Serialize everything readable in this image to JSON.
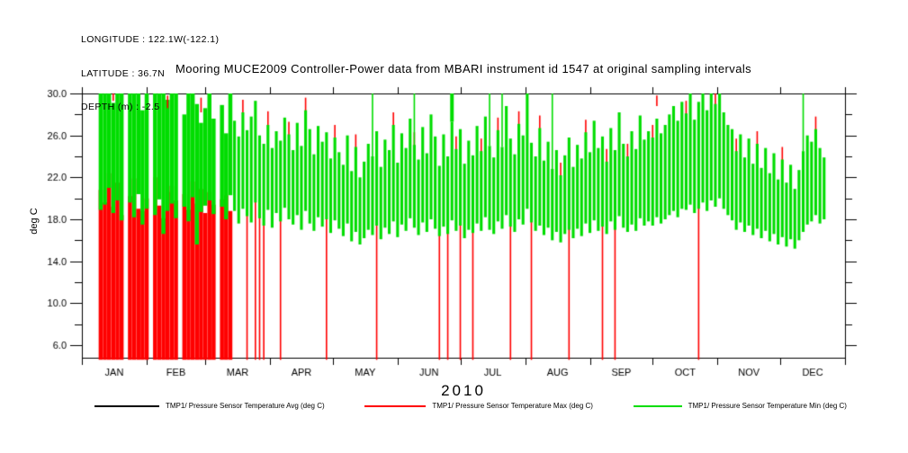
{
  "header": {
    "longitude": "LONGITUDE : 122.1W(-122.1)",
    "latitude": "LATITUDE : 36.7N",
    "depth": "DEPTH (m) : -2.5"
  },
  "title": "Mooring MUCE2009 Controller-Power data from MBARI instrument id 1547 at original sampling intervals",
  "legend": {
    "items": [
      {
        "label": "TMP1/ Pressure Sensor Temperature Avg (deg C)",
        "color": "#000000"
      },
      {
        "label": "TMP1/ Pressure Sensor Temperature Max (deg C)",
        "color": "#ff0000"
      },
      {
        "label": "TMP1/ Pressure Sensor Temperature Min (deg C)",
        "color": "#00dd00"
      }
    ]
  },
  "chart_data": {
    "type": "line",
    "title": "Mooring MUCE2009 Controller-Power data from MBARI instrument id 1547 at original sampling intervals",
    "xlabel": "2010",
    "ylabel": "deg C",
    "year": "2010",
    "ylim": [
      4.8,
      30.0
    ],
    "clip_top": 30.0,
    "grid": false,
    "legend_position": "bottom",
    "yticks_major": [
      6,
      10,
      14,
      18,
      22,
      26,
      30
    ],
    "ytick_labels": [
      "6.0",
      "10.0",
      "14.0",
      "18.0",
      "22.0",
      "26.0",
      "30.0"
    ],
    "yticks_minor": [
      8,
      12,
      16,
      20,
      24,
      28
    ],
    "months": [
      "JAN",
      "FEB",
      "MAR",
      "APR",
      "MAY",
      "JUN",
      "JUL",
      "AUG",
      "SEP",
      "OCT",
      "NOV",
      "DEC"
    ],
    "month_days": [
      31,
      28,
      31,
      30,
      31,
      30,
      31,
      31,
      30,
      31,
      30,
      31
    ],
    "series": [
      {
        "name": "TMP1/ Pressure Sensor Temperature Avg (deg C)",
        "color": "#000000",
        "visible_in_plot": false
      },
      {
        "name": "TMP1/ Pressure Sensor Temperature Max (deg C)",
        "color": "#ff0000"
      },
      {
        "name": "TMP1/ Pressure Sensor Temperature Min (deg C)",
        "color": "#00dd00"
      }
    ],
    "columns_format": [
      "day_of_year",
      "min_band_lo_degC",
      "min_band_hi_degC",
      "max_seg_lo_degC",
      "max_seg_hi_degC"
    ],
    "columns": [
      [
        9,
        18.9,
        30,
        4.6,
        20.8
      ],
      [
        11,
        19.4,
        30,
        4.6,
        19.6
      ],
      [
        13,
        21.0,
        30,
        4.6,
        22.4
      ],
      [
        15,
        18.6,
        29.1,
        4.6,
        19.2
      ],
      [
        17,
        19.8,
        30,
        4.6,
        21.5
      ],
      [
        19,
        17.9,
        30,
        4.6,
        18.4
      ],
      [
        21,
        null,
        null,
        null,
        null
      ],
      [
        23,
        19.6,
        30,
        4.6,
        20.2
      ],
      [
        25,
        18.2,
        30,
        4.6,
        21.9
      ],
      [
        27,
        20.4,
        30,
        4.6,
        19.0
      ],
      [
        29,
        17.5,
        28.4,
        4.6,
        18.8
      ],
      [
        31,
        19.0,
        30,
        4.6,
        20.0
      ],
      [
        33,
        null,
        null,
        null,
        null
      ],
      [
        35,
        18.4,
        30,
        4.6,
        22.0
      ],
      [
        37,
        19.9,
        30,
        4.6,
        19.3
      ],
      [
        39,
        16.6,
        30,
        4.6,
        18.1
      ],
      [
        41,
        18.8,
        29.4,
        4.6,
        20.6
      ],
      [
        43,
        19.5,
        30,
        4.6,
        21.2
      ],
      [
        45,
        18.1,
        30,
        4.6,
        19.8
      ],
      [
        47,
        null,
        null,
        null,
        null
      ],
      [
        49,
        19.2,
        28.0,
        4.6,
        20.4
      ],
      [
        51,
        17.8,
        30,
        4.6,
        18.9
      ],
      [
        53,
        20.1,
        30,
        4.6,
        21.6
      ],
      [
        55,
        15.6,
        29.0,
        4.6,
        19.5
      ],
      [
        57,
        18.7,
        27.2,
        4.6,
        20.9
      ],
      [
        59,
        19.3,
        28.6,
        4.6,
        18.6
      ],
      [
        61,
        19.8,
        30,
        4.6,
        20.6
      ],
      [
        63,
        18.5,
        27.6,
        4.6,
        19.4
      ],
      [
        65,
        null,
        null,
        null,
        null
      ],
      [
        67,
        19.2,
        28.9,
        4.6,
        19.9
      ],
      [
        69,
        18.0,
        26.2,
        4.6,
        20.3
      ],
      [
        71,
        20.3,
        30,
        4.6,
        18.8
      ],
      [
        73,
        18.8,
        27.4,
        null,
        null
      ],
      [
        75,
        17.6,
        25.9,
        null,
        null
      ],
      [
        77,
        19.0,
        28.2,
        27.2,
        29.4
      ],
      [
        79,
        18.3,
        26.5,
        4.6,
        19.1
      ],
      [
        81,
        17.7,
        27.8,
        null,
        null
      ],
      [
        83,
        19.6,
        29.3,
        4.6,
        20.4
      ],
      [
        85,
        18.1,
        26.0,
        4.6,
        18.9
      ],
      [
        87,
        17.4,
        25.2,
        4.6,
        18.2
      ],
      [
        89,
        18.9,
        27.0,
        26.1,
        28.3
      ],
      [
        91,
        17.2,
        24.8,
        null,
        null
      ],
      [
        93,
        18.6,
        26.4,
        null,
        null
      ],
      [
        95,
        17.8,
        25.5,
        4.6,
        18.6
      ],
      [
        97,
        19.1,
        27.7,
        null,
        null
      ],
      [
        99,
        18.0,
        26.1,
        25.2,
        27.3
      ],
      [
        101,
        17.5,
        24.6,
        null,
        null
      ],
      [
        103,
        18.4,
        27.2,
        null,
        null
      ],
      [
        105,
        17.0,
        25.0,
        null,
        null
      ],
      [
        107,
        18.8,
        28.4,
        27.5,
        29.6
      ],
      [
        109,
        17.6,
        26.6,
        null,
        null
      ],
      [
        111,
        16.9,
        24.2,
        null,
        null
      ],
      [
        113,
        18.2,
        26.9,
        null,
        null
      ],
      [
        115,
        17.3,
        25.4,
        null,
        null
      ],
      [
        117,
        18.0,
        26.3,
        4.6,
        18.8
      ],
      [
        119,
        16.7,
        23.8,
        null,
        null
      ],
      [
        121,
        17.9,
        25.8,
        24.9,
        27.0
      ],
      [
        123,
        17.1,
        24.4,
        null,
        null
      ],
      [
        125,
        16.4,
        23.2,
        null,
        null
      ],
      [
        127,
        17.6,
        26.0,
        null,
        null
      ],
      [
        129,
        15.9,
        22.6,
        null,
        null
      ],
      [
        131,
        16.8,
        24.9,
        24.0,
        26.1
      ],
      [
        133,
        15.6,
        22.0,
        null,
        null
      ],
      [
        135,
        16.2,
        23.5,
        null,
        null
      ],
      [
        137,
        17.0,
        25.2,
        null,
        null
      ],
      [
        139,
        16.5,
        24.0,
        null,
        null
      ],
      [
        141,
        17.4,
        26.4,
        4.6,
        18.2
      ],
      [
        143,
        16.1,
        23.0,
        null,
        null
      ],
      [
        145,
        17.2,
        25.6,
        null,
        null
      ],
      [
        147,
        16.6,
        24.6,
        null,
        null
      ],
      [
        149,
        17.8,
        27.0,
        26.1,
        28.2
      ],
      [
        151,
        16.3,
        23.4,
        null,
        null
      ],
      [
        153,
        17.5,
        26.2,
        null,
        null
      ],
      [
        155,
        16.9,
        24.8,
        null,
        null
      ],
      [
        157,
        18.1,
        27.6,
        null,
        null
      ],
      [
        159,
        17.2,
        25.1,
        24.2,
        26.3
      ],
      [
        161,
        16.5,
        23.7,
        null,
        null
      ],
      [
        163,
        17.7,
        26.8,
        null,
        null
      ],
      [
        165,
        16.8,
        24.3,
        null,
        null
      ],
      [
        167,
        18.0,
        28.0,
        null,
        null
      ],
      [
        169,
        17.1,
        25.9,
        null,
        null
      ],
      [
        171,
        16.4,
        23.1,
        4.6,
        17.2
      ],
      [
        173,
        17.3,
        26.1,
        null,
        null
      ],
      [
        175,
        16.6,
        24.0,
        4.6,
        17.4
      ],
      [
        177,
        17.9,
        27.3,
        null,
        null
      ],
      [
        179,
        16.9,
        24.7,
        23.8,
        25.9
      ],
      [
        181,
        17.4,
        26.6,
        4.6,
        18.2
      ],
      [
        183,
        16.2,
        23.3,
        null,
        null
      ],
      [
        185,
        17.0,
        25.5,
        null,
        null
      ],
      [
        187,
        16.7,
        24.1,
        4.6,
        17.5
      ],
      [
        189,
        17.6,
        26.9,
        null,
        null
      ],
      [
        191,
        16.9,
        24.5,
        23.6,
        25.7
      ],
      [
        193,
        18.2,
        27.8,
        null,
        null
      ],
      [
        195,
        17.0,
        25.0,
        null,
        null
      ],
      [
        197,
        16.6,
        23.9,
        null,
        null
      ],
      [
        199,
        17.8,
        26.5,
        25.6,
        27.7
      ],
      [
        201,
        17.1,
        24.9,
        null,
        null
      ],
      [
        203,
        18.4,
        28.8,
        null,
        null
      ],
      [
        205,
        17.3,
        25.7,
        4.6,
        18.1
      ],
      [
        207,
        16.8,
        24.2,
        null,
        null
      ],
      [
        209,
        18.0,
        27.1,
        26.2,
        28.3
      ],
      [
        211,
        17.5,
        26.0,
        null,
        null
      ],
      [
        213,
        19.0,
        30,
        null,
        null
      ],
      [
        215,
        17.7,
        25.3,
        4.6,
        18.5
      ],
      [
        217,
        16.9,
        24.0,
        null,
        null
      ],
      [
        219,
        17.4,
        26.7,
        25.8,
        27.9
      ],
      [
        221,
        16.5,
        23.6,
        null,
        null
      ],
      [
        223,
        17.2,
        25.4,
        null,
        null
      ],
      [
        225,
        16.0,
        22.8,
        null,
        null
      ],
      [
        227,
        16.8,
        24.6,
        null,
        null
      ],
      [
        229,
        15.8,
        22.2,
        21.3,
        23.4
      ],
      [
        231,
        16.6,
        24.1,
        null,
        null
      ],
      [
        233,
        17.0,
        25.8,
        4.6,
        17.8
      ],
      [
        235,
        16.2,
        23.0,
        null,
        null
      ],
      [
        237,
        17.1,
        25.1,
        null,
        null
      ],
      [
        239,
        16.4,
        23.8,
        null,
        null
      ],
      [
        241,
        17.6,
        26.3,
        25.4,
        27.5
      ],
      [
        243,
        16.7,
        24.4,
        null,
        null
      ],
      [
        245,
        17.9,
        27.4,
        null,
        null
      ],
      [
        247,
        16.9,
        24.8,
        null,
        null
      ],
      [
        249,
        17.3,
        25.9,
        4.6,
        18.1
      ],
      [
        251,
        16.6,
        23.5,
        22.6,
        24.7
      ],
      [
        253,
        17.8,
        26.7,
        null,
        null
      ],
      [
        255,
        17.0,
        24.6,
        4.6,
        17.8
      ],
      [
        257,
        18.3,
        28.2,
        null,
        null
      ],
      [
        259,
        17.2,
        25.2,
        null,
        null
      ],
      [
        261,
        16.8,
        24.0,
        23.1,
        25.2
      ],
      [
        263,
        17.5,
        26.4,
        null,
        null
      ],
      [
        265,
        16.9,
        24.7,
        null,
        null
      ],
      [
        267,
        18.1,
        27.9,
        null,
        null
      ],
      [
        269,
        17.4,
        25.6,
        null,
        null
      ],
      [
        271,
        17.8,
        26.4,
        null,
        null
      ],
      [
        273,
        17.4,
        25.8,
        25.0,
        27.0
      ],
      [
        275,
        18.2,
        27.6,
        null,
        null
      ],
      [
        277,
        17.6,
        26.2,
        null,
        null
      ],
      [
        279,
        18.0,
        27.0,
        null,
        null
      ],
      [
        281,
        18.4,
        28.0,
        null,
        null
      ],
      [
        283,
        18.8,
        28.8,
        null,
        null
      ],
      [
        285,
        18.2,
        27.4,
        null,
        null
      ],
      [
        287,
        19.0,
        29.2,
        null,
        null
      ],
      [
        289,
        18.9,
        28.1,
        27.2,
        29.3
      ],
      [
        291,
        19.4,
        30,
        null,
        null
      ],
      [
        293,
        18.6,
        27.5,
        null,
        null
      ],
      [
        295,
        19.0,
        29.2,
        4.6,
        19.8
      ],
      [
        297,
        19.6,
        30,
        null,
        null
      ],
      [
        299,
        18.8,
        28.4,
        null,
        null
      ],
      [
        301,
        19.8,
        30,
        null,
        null
      ],
      [
        303,
        19.2,
        29.0,
        28.1,
        30
      ],
      [
        305,
        20.0,
        30,
        null,
        null
      ],
      [
        307,
        19.0,
        28.2,
        null,
        null
      ],
      [
        309,
        18.4,
        27.0,
        null,
        null
      ],
      [
        311,
        17.9,
        26.6,
        null,
        null
      ],
      [
        313,
        17.0,
        24.5,
        23.6,
        25.7
      ],
      [
        315,
        17.7,
        26.1,
        null,
        null
      ],
      [
        317,
        16.8,
        23.9,
        null,
        null
      ],
      [
        319,
        17.4,
        25.7,
        null,
        null
      ],
      [
        321,
        16.5,
        23.3,
        null,
        null
      ],
      [
        323,
        17.1,
        25.2,
        24.3,
        26.4
      ],
      [
        325,
        16.2,
        22.9,
        null,
        null
      ],
      [
        327,
        16.9,
        24.8,
        null,
        null
      ],
      [
        329,
        15.9,
        22.4,
        null,
        null
      ],
      [
        331,
        16.6,
        24.3,
        null,
        null
      ],
      [
        333,
        15.6,
        21.8,
        null,
        null
      ],
      [
        335,
        16.3,
        23.7,
        22.8,
        24.9
      ],
      [
        337,
        15.4,
        21.5,
        null,
        null
      ],
      [
        339,
        16.1,
        23.2,
        null,
        null
      ],
      [
        341,
        15.2,
        20.9,
        null,
        null
      ],
      [
        343,
        16.0,
        22.7,
        null,
        null
      ],
      [
        345,
        16.8,
        24.5,
        null,
        null
      ],
      [
        347,
        17.5,
        26.0,
        null,
        null
      ],
      [
        349,
        17.8,
        25.4,
        null,
        null
      ],
      [
        351,
        18.4,
        26.6,
        25.7,
        27.8
      ],
      [
        353,
        17.6,
        24.8,
        null,
        null
      ],
      [
        355,
        18.0,
        23.9,
        null,
        null
      ]
    ],
    "red_extra_segments": [
      [
        15,
        29.3,
        30
      ],
      [
        41,
        28.6,
        29.8
      ],
      [
        57,
        28.2,
        29.6
      ],
      [
        275,
        28.8,
        29.8
      ]
    ],
    "spike_days": [
      139,
      159,
      177,
      195,
      201,
      225,
      345
    ],
    "thick_spike_days": [
      177
    ]
  }
}
